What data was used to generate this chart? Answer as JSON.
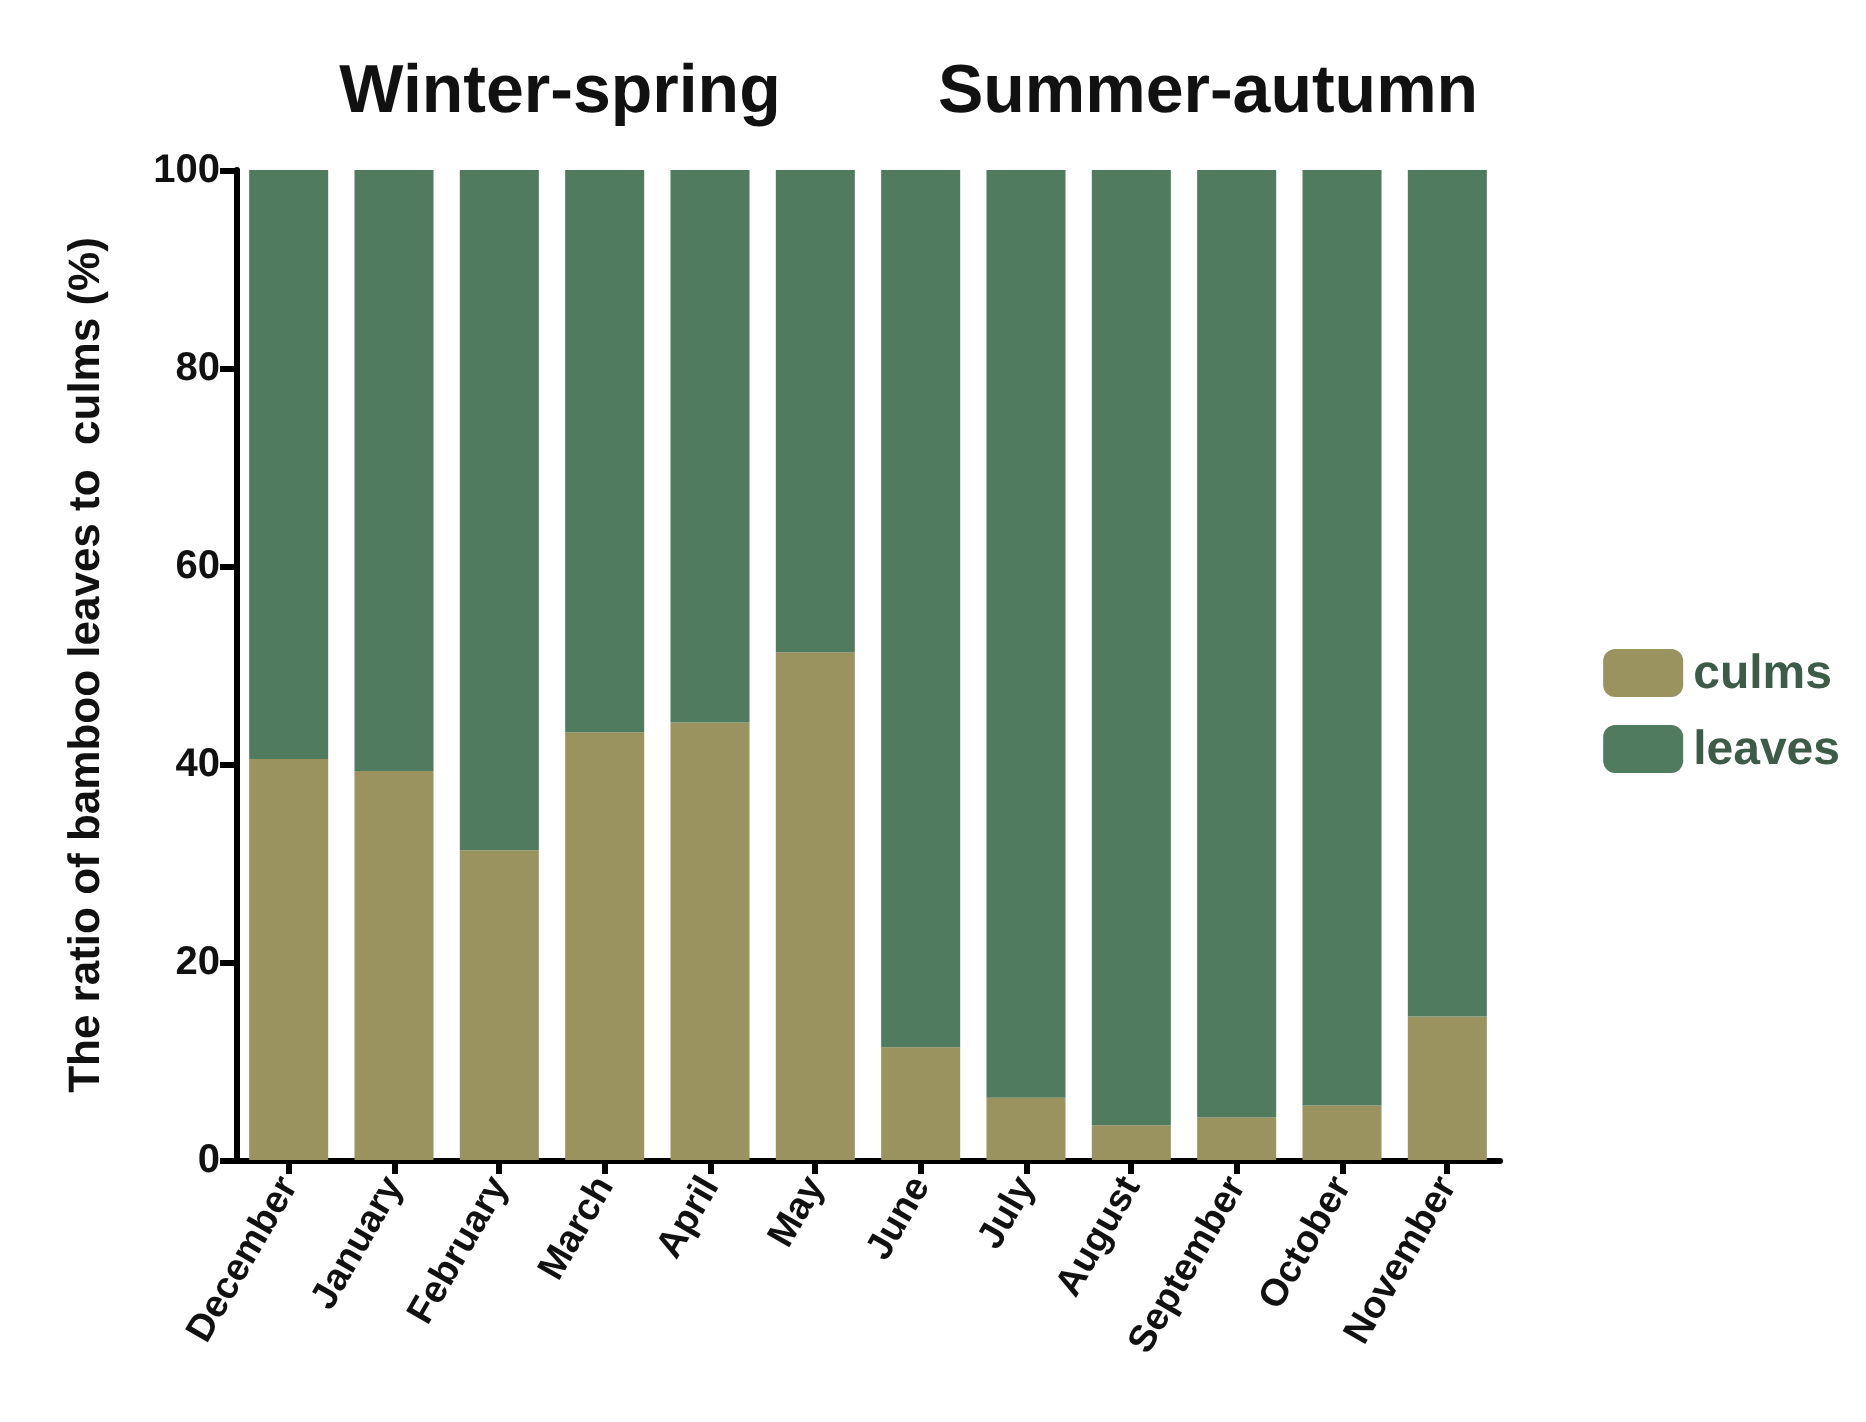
{
  "chart_data": {
    "type": "bar",
    "stacked": true,
    "ylabel": "The ratio of bamboo leaves to  culms (%)",
    "annotations": [
      "Winter-spring",
      "Summer-autumn"
    ],
    "categories": [
      "December",
      "January",
      "February",
      "March",
      "April",
      "May",
      "June",
      "July",
      "August",
      "September",
      "October",
      "November"
    ],
    "series": [
      {
        "name": "culms",
        "color": "#9a925f",
        "values": [
          40.5,
          39.3,
          31.3,
          43.2,
          44.2,
          51.3,
          11.4,
          6.3,
          3.5,
          4.3,
          5.5,
          14.5
        ]
      },
      {
        "name": "leaves",
        "color": "#517b5f",
        "values": [
          59.5,
          60.7,
          68.7,
          56.8,
          55.8,
          48.7,
          88.6,
          93.7,
          96.5,
          95.7,
          94.5,
          85.5
        ]
      }
    ],
    "ylim": [
      0,
      100
    ],
    "yticks": [
      0,
      20,
      40,
      60,
      80,
      100
    ],
    "grid": false,
    "legend": "right"
  }
}
